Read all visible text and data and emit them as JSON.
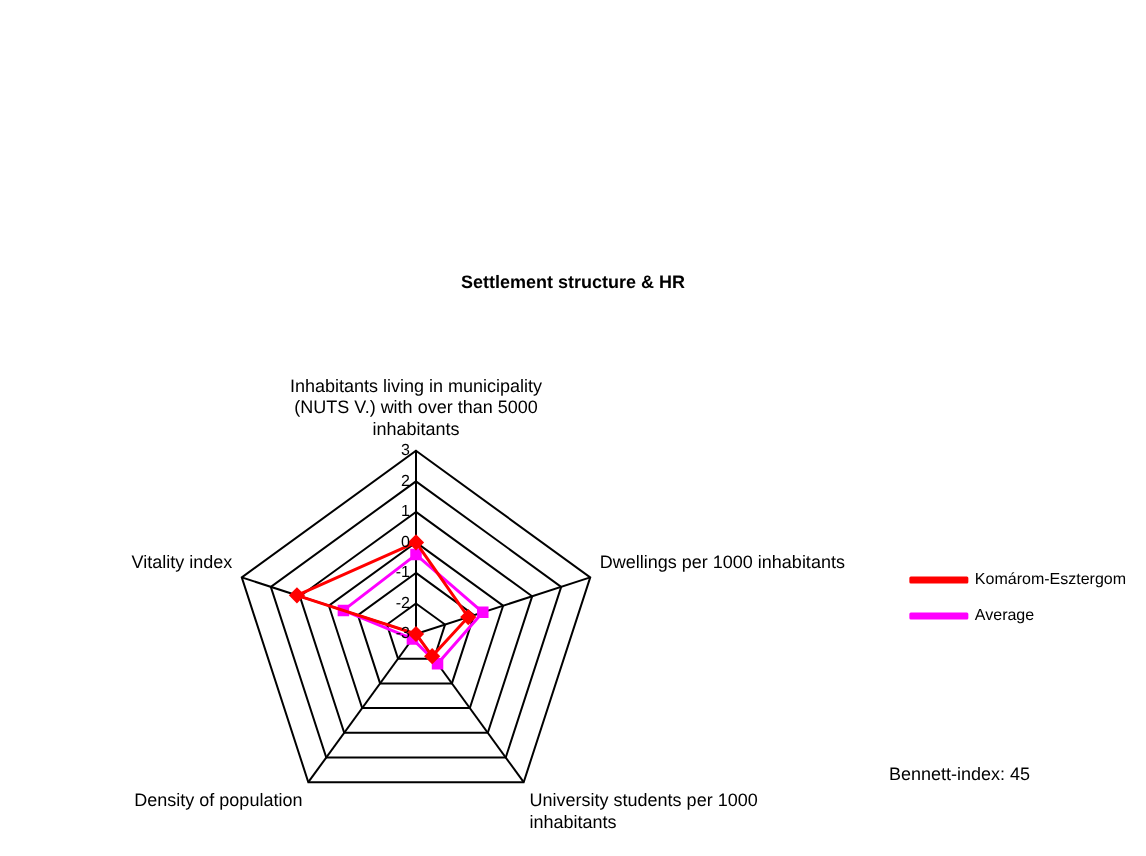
{
  "chart_data": {
    "type": "radar",
    "title": "Settlement structure & HR",
    "categories": [
      "Inhabitants living in municipality (NUTS V.) with over than 5000 inhabitants",
      "Dwellings per 1000 inhabitants",
      "University students per 1000 inhabitants",
      "Density of population",
      "Vitality index"
    ],
    "series": [
      {
        "name": "Komárom-Esztergom",
        "color": "#ff0000",
        "marker": "diamond",
        "values": [
          0,
          -1.2,
          -2.1,
          -3,
          1.1
        ]
      },
      {
        "name": "Average",
        "color": "#ff00ff",
        "marker": "square",
        "values": [
          -0.4,
          -0.7,
          -1.8,
          -2.8,
          -0.5
        ]
      }
    ],
    "ylim": [
      -3,
      3
    ],
    "yticks": [
      -3,
      -2,
      -1,
      0,
      1,
      2,
      3
    ],
    "grid": true,
    "legend": "right",
    "annotations": [
      "Bennett-index: 45"
    ]
  }
}
